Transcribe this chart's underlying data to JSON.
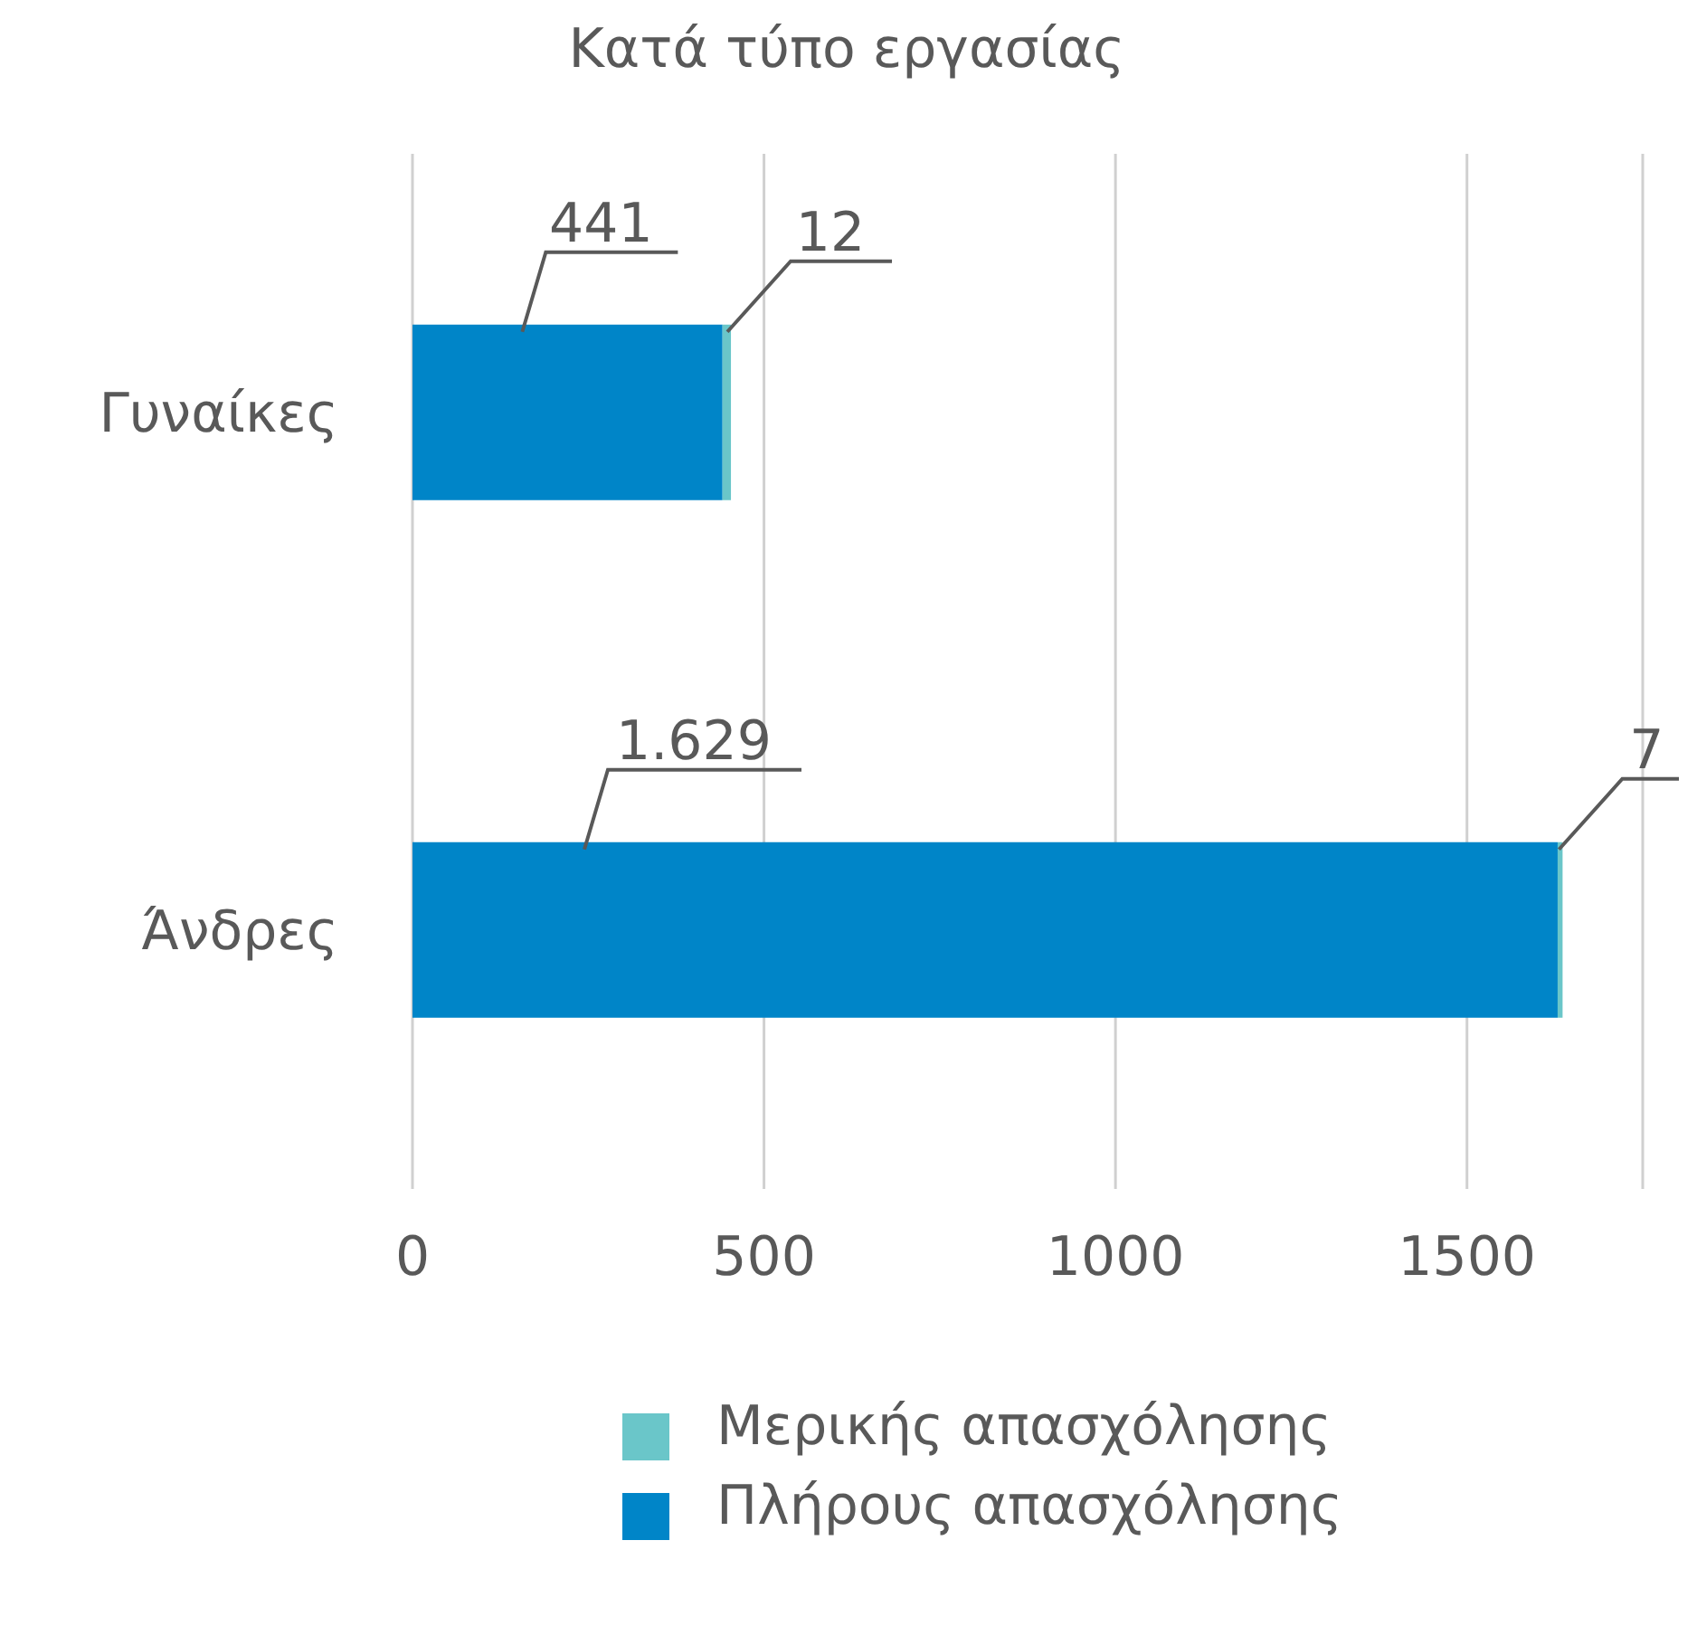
{
  "chart_data": {
    "type": "bar",
    "title": "Κατά τύπο εργασίας",
    "orientation": "horizontal",
    "stacked": true,
    "categories": [
      "Γυναίκες",
      "Άνδρες"
    ],
    "series": [
      {
        "name": "Πλήρους απασχόλησης",
        "color": "#0085c8",
        "values": [
          441,
          1629
        ],
        "value_labels": [
          "441",
          "1.629"
        ]
      },
      {
        "name": "Μερικής απασχόλησης",
        "color": "#6ac6c9",
        "values": [
          12,
          7
        ],
        "value_labels": [
          "12",
          "7"
        ]
      }
    ],
    "xlim": [
      0,
      1750
    ],
    "xticks": [
      0,
      500,
      1000,
      1500
    ],
    "grid": "x",
    "legend": "bottom"
  }
}
